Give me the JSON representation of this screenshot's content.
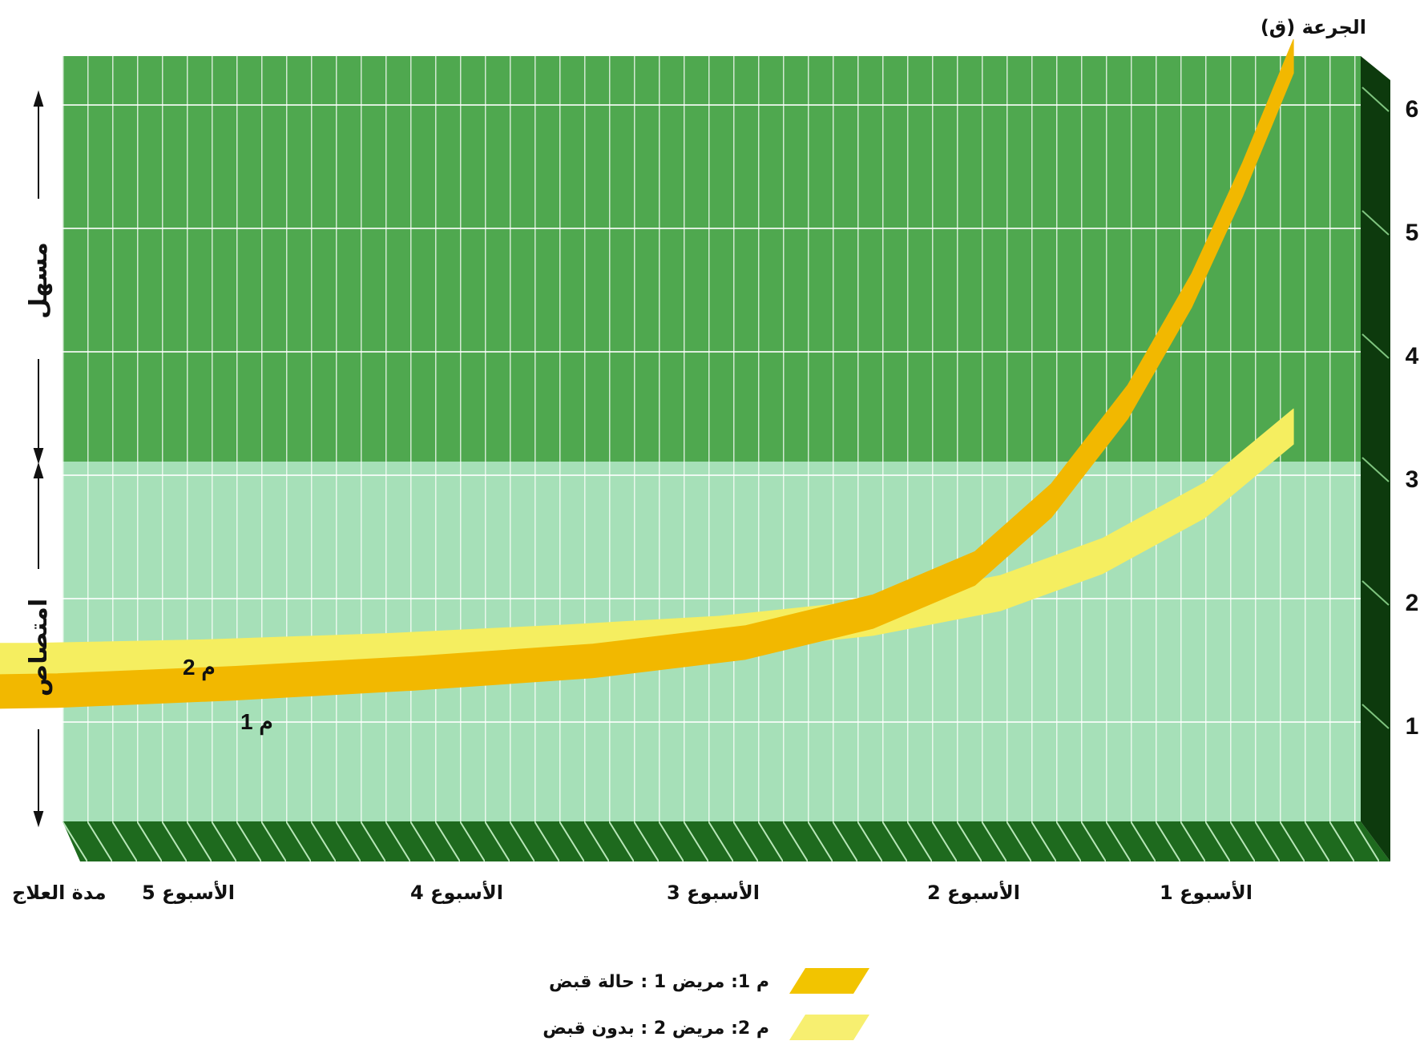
{
  "chart_data": {
    "type": "area",
    "ylabel": "الجرعة (ق)",
    "xlabel": "مدة العلاج",
    "y_ticks": [
      "1",
      "2",
      "3",
      "4",
      "5",
      "6"
    ],
    "x_categories": [
      "الأسبوع 1",
      "الأسبوع 2",
      "الأسبوع 3",
      "الأسبوع 4",
      "الأسبوع 5"
    ],
    "x_direction": "right-to-left",
    "ylim": [
      0,
      6.5
    ],
    "xlim": [
      0,
      5.5
    ],
    "bands": [
      {
        "label": "مسهل",
        "y_from": 3,
        "y_to": 6.5,
        "color": "#4fa84f"
      },
      {
        "label": "امتصاص",
        "y_from": 0,
        "y_to": 3,
        "color": "#a6e0b8"
      }
    ],
    "series": [
      {
        "name": "م 1",
        "color": "#f2b800",
        "points": [
          [
            0.05,
            6.2
          ],
          [
            0.25,
            5.2
          ],
          [
            0.45,
            4.3
          ],
          [
            0.7,
            3.4
          ],
          [
            1.0,
            2.6
          ],
          [
            1.3,
            2.05
          ],
          [
            1.7,
            1.7
          ],
          [
            2.2,
            1.45
          ],
          [
            2.8,
            1.3
          ],
          [
            3.5,
            1.2
          ],
          [
            4.2,
            1.12
          ],
          [
            4.9,
            1.06
          ],
          [
            5.5,
            1.04
          ]
        ]
      },
      {
        "name": "م 2",
        "color": "#f5ee60",
        "points": [
          [
            0.05,
            3.2
          ],
          [
            0.4,
            2.6
          ],
          [
            0.8,
            2.15
          ],
          [
            1.2,
            1.85
          ],
          [
            1.7,
            1.65
          ],
          [
            2.3,
            1.52
          ],
          [
            2.9,
            1.45
          ],
          [
            3.6,
            1.38
          ],
          [
            4.3,
            1.33
          ],
          [
            5.0,
            1.3
          ],
          [
            5.5,
            1.3
          ]
        ]
      }
    ],
    "band_labels": {
      "series1": "م 1",
      "series2": "م 2"
    }
  },
  "legend": [
    {
      "text": "م 1: مريض 1 : حالة قبض",
      "color": "#f2c400"
    },
    {
      "text": "م 2: مريض 2 : بدون قبض",
      "color": "#f7ef70"
    }
  ]
}
